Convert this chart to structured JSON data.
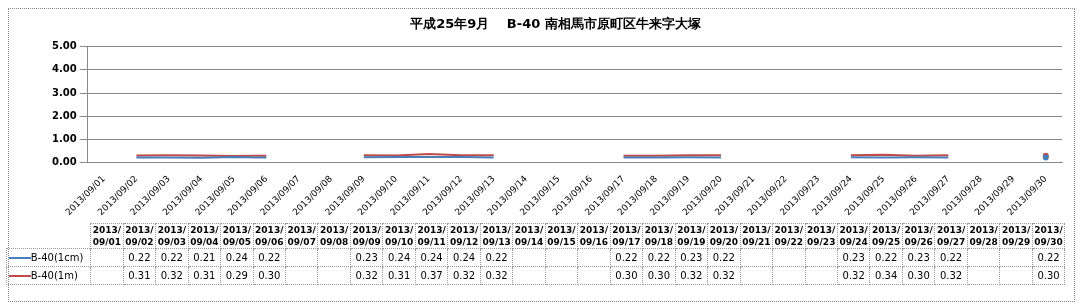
{
  "chart_data": {
    "type": "line",
    "title": "平成25年9月　 B-40 南相馬市原町区牛来字大塚",
    "categories": [
      "2013/09/01",
      "2013/09/02",
      "2013/09/03",
      "2013/09/04",
      "2013/09/05",
      "2013/09/06",
      "2013/09/07",
      "2013/09/08",
      "2013/09/09",
      "2013/09/10",
      "2013/09/11",
      "2013/09/12",
      "2013/09/13",
      "2013/09/14",
      "2013/09/15",
      "2013/09/16",
      "2013/09/17",
      "2013/09/18",
      "2013/09/19",
      "2013/09/20",
      "2013/09/21",
      "2013/09/22",
      "2013/09/23",
      "2013/09/24",
      "2013/09/25",
      "2013/09/26",
      "2013/09/27",
      "2013/09/28",
      "2013/09/29",
      "2013/09/30"
    ],
    "series": [
      {
        "name": "B-40(1cm)",
        "color": "#4a7ebb",
        "values": [
          null,
          0.22,
          0.22,
          0.21,
          0.24,
          0.22,
          null,
          null,
          0.23,
          0.24,
          0.24,
          0.24,
          0.22,
          null,
          null,
          null,
          0.22,
          0.22,
          0.23,
          0.22,
          null,
          null,
          null,
          0.23,
          0.22,
          0.23,
          0.22,
          null,
          null,
          0.22
        ],
        "value_labels": [
          null,
          "0.22",
          "0.22",
          "0.21",
          "0.24",
          "0.22",
          null,
          null,
          "0.23",
          "0.24",
          "0.24",
          "0.24",
          "0.22",
          null,
          null,
          null,
          "0.22",
          "0.22",
          "0.23",
          "0.22",
          null,
          null,
          null,
          "0.23",
          "0.22",
          "0.23",
          "0.22",
          null,
          null,
          "0.22"
        ]
      },
      {
        "name": "B-40(1m)",
        "color": "#be4b48",
        "values": [
          null,
          0.31,
          0.32,
          0.31,
          0.29,
          0.3,
          null,
          null,
          0.32,
          0.31,
          0.37,
          0.32,
          0.32,
          null,
          null,
          null,
          0.3,
          0.3,
          0.32,
          0.32,
          null,
          null,
          null,
          0.32,
          0.34,
          0.3,
          0.32,
          null,
          null,
          0.3
        ],
        "value_labels": [
          null,
          "0.31",
          "0.32",
          "0.31",
          "0.29",
          "0.30",
          null,
          null,
          "0.32",
          "0.31",
          "0.37",
          "0.32",
          "0.32",
          null,
          null,
          null,
          "0.30",
          "0.30",
          "0.32",
          "0.32",
          null,
          null,
          null,
          "0.32",
          "0.34",
          "0.30",
          "0.32",
          null,
          null,
          "0.30"
        ]
      }
    ],
    "ylim": [
      0,
      5
    ],
    "yticks": [
      {
        "value": 0,
        "label": "0.00"
      },
      {
        "value": 1,
        "label": "1.00"
      },
      {
        "value": 2,
        "label": "2.00"
      },
      {
        "value": 3,
        "label": "3.00"
      },
      {
        "value": 4,
        "label": "4.00"
      },
      {
        "value": 5,
        "label": "5.00"
      }
    ],
    "grid": "y",
    "legend": "bottom",
    "marker": "none",
    "line_style": "solid"
  }
}
